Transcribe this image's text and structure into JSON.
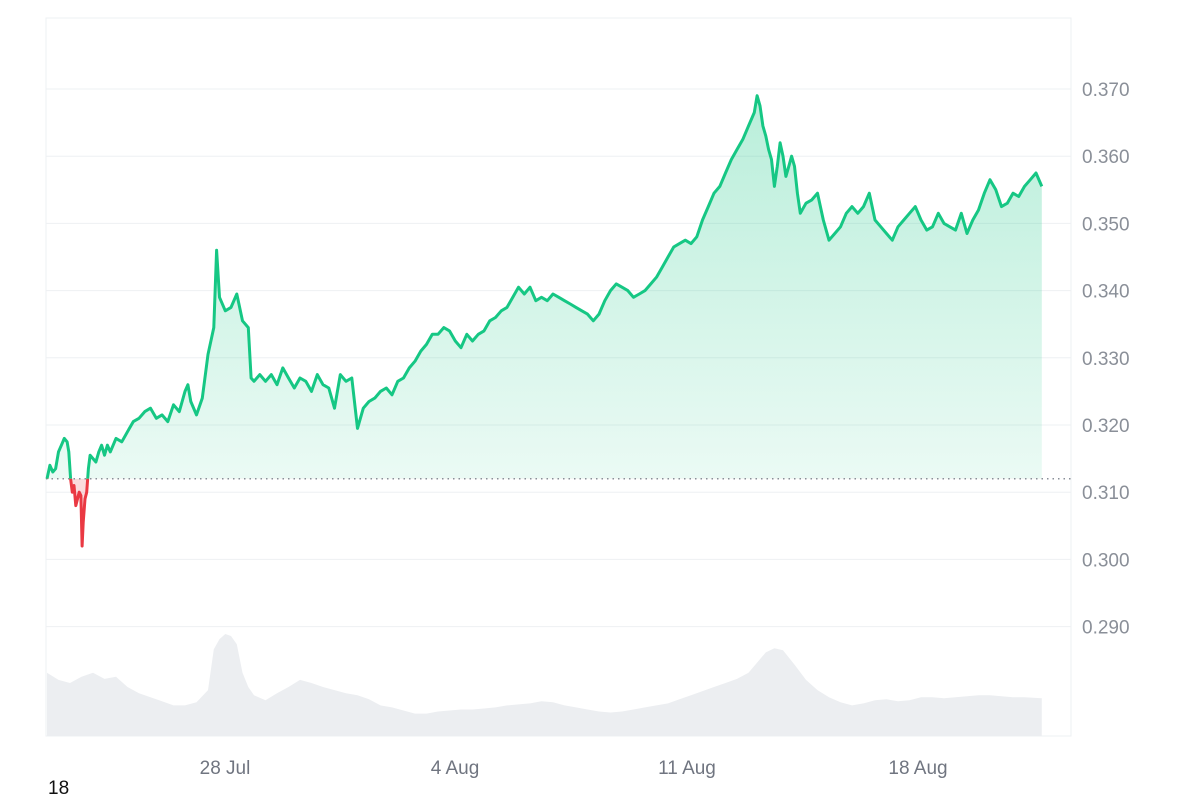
{
  "chart_data": {
    "type": "area",
    "x_ticks": [
      "28 Jul",
      "4 Aug",
      "11 Aug",
      "18 Aug"
    ],
    "y_ticks": [
      0.37,
      0.36,
      0.35,
      0.34,
      0.33,
      0.32,
      0.31,
      0.3,
      0.29
    ],
    "ylim": [
      0.2785,
      0.38
    ],
    "baseline": 0.312,
    "grid": true,
    "colors": {
      "up": "#16c784",
      "down": "#ea3943",
      "volume": "#eceef1",
      "grid": "#eef0f3",
      "baseline": "#8a8f98"
    },
    "price_series": [
      [
        0.0,
        0.312
      ],
      [
        0.05,
        0.314
      ],
      [
        0.1,
        0.313
      ],
      [
        0.15,
        0.3135
      ],
      [
        0.2,
        0.316
      ],
      [
        0.25,
        0.317
      ],
      [
        0.3,
        0.318
      ],
      [
        0.35,
        0.3175
      ],
      [
        0.38,
        0.316
      ],
      [
        0.41,
        0.312
      ],
      [
        0.44,
        0.31
      ],
      [
        0.47,
        0.311
      ],
      [
        0.5,
        0.308
      ],
      [
        0.53,
        0.309
      ],
      [
        0.56,
        0.31
      ],
      [
        0.59,
        0.3095
      ],
      [
        0.61,
        0.302
      ],
      [
        0.63,
        0.3055
      ],
      [
        0.66,
        0.309
      ],
      [
        0.69,
        0.31
      ],
      [
        0.72,
        0.3135
      ],
      [
        0.75,
        0.3155
      ],
      [
        0.8,
        0.315
      ],
      [
        0.85,
        0.3145
      ],
      [
        0.9,
        0.316
      ],
      [
        0.95,
        0.317
      ],
      [
        1.0,
        0.3155
      ],
      [
        1.05,
        0.317
      ],
      [
        1.1,
        0.316
      ],
      [
        1.2,
        0.318
      ],
      [
        1.3,
        0.3175
      ],
      [
        1.4,
        0.319
      ],
      [
        1.5,
        0.3205
      ],
      [
        1.6,
        0.321
      ],
      [
        1.7,
        0.322
      ],
      [
        1.8,
        0.3225
      ],
      [
        1.9,
        0.321
      ],
      [
        2.0,
        0.3215
      ],
      [
        2.1,
        0.3205
      ],
      [
        2.2,
        0.323
      ],
      [
        2.3,
        0.322
      ],
      [
        2.4,
        0.325
      ],
      [
        2.45,
        0.326
      ],
      [
        2.5,
        0.3235
      ],
      [
        2.6,
        0.3215
      ],
      [
        2.7,
        0.324
      ],
      [
        2.8,
        0.3305
      ],
      [
        2.9,
        0.3345
      ],
      [
        2.95,
        0.346
      ],
      [
        3.0,
        0.339
      ],
      [
        3.1,
        0.337
      ],
      [
        3.2,
        0.3375
      ],
      [
        3.3,
        0.3395
      ],
      [
        3.4,
        0.3355
      ],
      [
        3.5,
        0.3345
      ],
      [
        3.55,
        0.327
      ],
      [
        3.6,
        0.3265
      ],
      [
        3.7,
        0.3275
      ],
      [
        3.8,
        0.3265
      ],
      [
        3.9,
        0.3275
      ],
      [
        4.0,
        0.326
      ],
      [
        4.1,
        0.3285
      ],
      [
        4.2,
        0.327
      ],
      [
        4.3,
        0.3255
      ],
      [
        4.4,
        0.327
      ],
      [
        4.5,
        0.3265
      ],
      [
        4.6,
        0.325
      ],
      [
        4.7,
        0.3275
      ],
      [
        4.8,
        0.326
      ],
      [
        4.9,
        0.3255
      ],
      [
        5.0,
        0.3225
      ],
      [
        5.1,
        0.3275
      ],
      [
        5.2,
        0.3265
      ],
      [
        5.3,
        0.327
      ],
      [
        5.4,
        0.3195
      ],
      [
        5.5,
        0.3225
      ],
      [
        5.6,
        0.3235
      ],
      [
        5.7,
        0.324
      ],
      [
        5.8,
        0.325
      ],
      [
        5.9,
        0.3255
      ],
      [
        6.0,
        0.3245
      ],
      [
        6.1,
        0.3265
      ],
      [
        6.2,
        0.327
      ],
      [
        6.3,
        0.3285
      ],
      [
        6.4,
        0.3295
      ],
      [
        6.5,
        0.331
      ],
      [
        6.6,
        0.332
      ],
      [
        6.7,
        0.3335
      ],
      [
        6.8,
        0.3335
      ],
      [
        6.9,
        0.3345
      ],
      [
        7.0,
        0.334
      ],
      [
        7.1,
        0.3325
      ],
      [
        7.2,
        0.3315
      ],
      [
        7.3,
        0.3335
      ],
      [
        7.4,
        0.3325
      ],
      [
        7.5,
        0.3335
      ],
      [
        7.6,
        0.334
      ],
      [
        7.7,
        0.3355
      ],
      [
        7.8,
        0.336
      ],
      [
        7.9,
        0.337
      ],
      [
        8.0,
        0.3375
      ],
      [
        8.1,
        0.339
      ],
      [
        8.2,
        0.3405
      ],
      [
        8.3,
        0.3395
      ],
      [
        8.4,
        0.3405
      ],
      [
        8.5,
        0.3385
      ],
      [
        8.6,
        0.339
      ],
      [
        8.7,
        0.3385
      ],
      [
        8.8,
        0.3395
      ],
      [
        8.9,
        0.339
      ],
      [
        9.0,
        0.3385
      ],
      [
        9.1,
        0.338
      ],
      [
        9.2,
        0.3375
      ],
      [
        9.3,
        0.337
      ],
      [
        9.4,
        0.3365
      ],
      [
        9.5,
        0.3355
      ],
      [
        9.6,
        0.3365
      ],
      [
        9.7,
        0.3385
      ],
      [
        9.8,
        0.34
      ],
      [
        9.9,
        0.341
      ],
      [
        10.0,
        0.3405
      ],
      [
        10.1,
        0.34
      ],
      [
        10.2,
        0.339
      ],
      [
        10.3,
        0.3395
      ],
      [
        10.4,
        0.34
      ],
      [
        10.5,
        0.341
      ],
      [
        10.6,
        0.342
      ],
      [
        10.7,
        0.3435
      ],
      [
        10.8,
        0.345
      ],
      [
        10.9,
        0.3465
      ],
      [
        11.0,
        0.347
      ],
      [
        11.1,
        0.3475
      ],
      [
        11.2,
        0.347
      ],
      [
        11.3,
        0.348
      ],
      [
        11.4,
        0.3505
      ],
      [
        11.5,
        0.3525
      ],
      [
        11.6,
        0.3545
      ],
      [
        11.7,
        0.3555
      ],
      [
        11.8,
        0.3575
      ],
      [
        11.9,
        0.3595
      ],
      [
        12.0,
        0.361
      ],
      [
        12.1,
        0.3625
      ],
      [
        12.2,
        0.3645
      ],
      [
        12.3,
        0.3665
      ],
      [
        12.35,
        0.369
      ],
      [
        12.4,
        0.3675
      ],
      [
        12.45,
        0.3645
      ],
      [
        12.5,
        0.363
      ],
      [
        12.55,
        0.361
      ],
      [
        12.6,
        0.3595
      ],
      [
        12.65,
        0.3555
      ],
      [
        12.7,
        0.3585
      ],
      [
        12.75,
        0.362
      ],
      [
        12.8,
        0.36
      ],
      [
        12.85,
        0.357
      ],
      [
        12.9,
        0.3585
      ],
      [
        12.95,
        0.36
      ],
      [
        13.0,
        0.3585
      ],
      [
        13.05,
        0.3545
      ],
      [
        13.1,
        0.3515
      ],
      [
        13.2,
        0.353
      ],
      [
        13.3,
        0.3535
      ],
      [
        13.4,
        0.3545
      ],
      [
        13.5,
        0.3505
      ],
      [
        13.6,
        0.3475
      ],
      [
        13.7,
        0.3485
      ],
      [
        13.8,
        0.3495
      ],
      [
        13.9,
        0.3515
      ],
      [
        14.0,
        0.3525
      ],
      [
        14.1,
        0.3515
      ],
      [
        14.2,
        0.3525
      ],
      [
        14.3,
        0.3545
      ],
      [
        14.4,
        0.3505
      ],
      [
        14.5,
        0.3495
      ],
      [
        14.6,
        0.3485
      ],
      [
        14.7,
        0.3475
      ],
      [
        14.8,
        0.3495
      ],
      [
        14.9,
        0.3505
      ],
      [
        15.0,
        0.3515
      ],
      [
        15.1,
        0.3525
      ],
      [
        15.2,
        0.3505
      ],
      [
        15.3,
        0.349
      ],
      [
        15.4,
        0.3495
      ],
      [
        15.5,
        0.3515
      ],
      [
        15.6,
        0.35
      ],
      [
        15.7,
        0.3495
      ],
      [
        15.8,
        0.349
      ],
      [
        15.9,
        0.3515
      ],
      [
        16.0,
        0.3485
      ],
      [
        16.1,
        0.3505
      ],
      [
        16.2,
        0.352
      ],
      [
        16.3,
        0.3545
      ],
      [
        16.4,
        0.3565
      ],
      [
        16.5,
        0.355
      ],
      [
        16.6,
        0.3525
      ],
      [
        16.7,
        0.353
      ],
      [
        16.8,
        0.3545
      ],
      [
        16.9,
        0.354
      ],
      [
        17.0,
        0.3555
      ],
      [
        17.1,
        0.3565
      ],
      [
        17.2,
        0.3575
      ],
      [
        17.3,
        0.3555
      ]
    ],
    "volume_series": [
      [
        0.0,
        0.62
      ],
      [
        0.2,
        0.55
      ],
      [
        0.4,
        0.52
      ],
      [
        0.6,
        0.58
      ],
      [
        0.8,
        0.62
      ],
      [
        1.0,
        0.56
      ],
      [
        1.2,
        0.58
      ],
      [
        1.4,
        0.48
      ],
      [
        1.6,
        0.42
      ],
      [
        1.8,
        0.38
      ],
      [
        2.0,
        0.34
      ],
      [
        2.2,
        0.3
      ],
      [
        2.4,
        0.3
      ],
      [
        2.6,
        0.33
      ],
      [
        2.8,
        0.45
      ],
      [
        2.9,
        0.85
      ],
      [
        3.0,
        0.95
      ],
      [
        3.1,
        1.0
      ],
      [
        3.2,
        0.98
      ],
      [
        3.3,
        0.9
      ],
      [
        3.4,
        0.62
      ],
      [
        3.5,
        0.48
      ],
      [
        3.6,
        0.4
      ],
      [
        3.8,
        0.35
      ],
      [
        4.0,
        0.42
      ],
      [
        4.2,
        0.48
      ],
      [
        4.4,
        0.55
      ],
      [
        4.6,
        0.52
      ],
      [
        4.8,
        0.48
      ],
      [
        5.0,
        0.45
      ],
      [
        5.2,
        0.42
      ],
      [
        5.4,
        0.4
      ],
      [
        5.6,
        0.36
      ],
      [
        5.8,
        0.3
      ],
      [
        6.0,
        0.28
      ],
      [
        6.2,
        0.25
      ],
      [
        6.4,
        0.22
      ],
      [
        6.6,
        0.22
      ],
      [
        6.8,
        0.24
      ],
      [
        7.0,
        0.25
      ],
      [
        7.2,
        0.26
      ],
      [
        7.4,
        0.26
      ],
      [
        7.6,
        0.27
      ],
      [
        7.8,
        0.28
      ],
      [
        8.0,
        0.3
      ],
      [
        8.2,
        0.31
      ],
      [
        8.4,
        0.32
      ],
      [
        8.6,
        0.34
      ],
      [
        8.8,
        0.33
      ],
      [
        9.0,
        0.3
      ],
      [
        9.2,
        0.28
      ],
      [
        9.4,
        0.26
      ],
      [
        9.6,
        0.24
      ],
      [
        9.8,
        0.23
      ],
      [
        10.0,
        0.24
      ],
      [
        10.2,
        0.26
      ],
      [
        10.4,
        0.28
      ],
      [
        10.6,
        0.3
      ],
      [
        10.8,
        0.32
      ],
      [
        11.0,
        0.36
      ],
      [
        11.2,
        0.4
      ],
      [
        11.4,
        0.44
      ],
      [
        11.6,
        0.48
      ],
      [
        11.8,
        0.52
      ],
      [
        12.0,
        0.56
      ],
      [
        12.2,
        0.62
      ],
      [
        12.35,
        0.72
      ],
      [
        12.5,
        0.82
      ],
      [
        12.65,
        0.86
      ],
      [
        12.8,
        0.84
      ],
      [
        13.0,
        0.7
      ],
      [
        13.2,
        0.55
      ],
      [
        13.4,
        0.45
      ],
      [
        13.6,
        0.38
      ],
      [
        13.8,
        0.33
      ],
      [
        14.0,
        0.3
      ],
      [
        14.2,
        0.32
      ],
      [
        14.4,
        0.35
      ],
      [
        14.6,
        0.36
      ],
      [
        14.8,
        0.34
      ],
      [
        15.0,
        0.35
      ],
      [
        15.2,
        0.38
      ],
      [
        15.4,
        0.38
      ],
      [
        15.6,
        0.37
      ],
      [
        15.8,
        0.38
      ],
      [
        16.0,
        0.39
      ],
      [
        16.2,
        0.4
      ],
      [
        16.4,
        0.4
      ],
      [
        16.6,
        0.39
      ],
      [
        16.8,
        0.38
      ],
      [
        17.0,
        0.38
      ],
      [
        17.3,
        0.37
      ]
    ],
    "corner_label": "18"
  }
}
